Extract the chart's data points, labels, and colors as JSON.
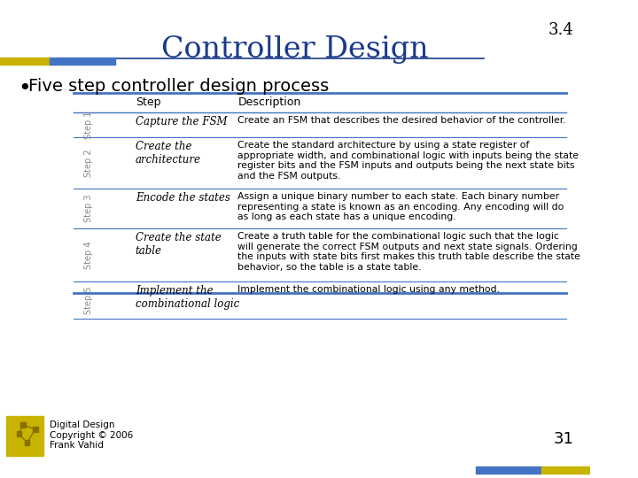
{
  "title": "Controller Design",
  "section_num": "3.4",
  "bullet": "Five step controller design process",
  "page_num": "31",
  "footer_text": "Digital Design\nCopyright © 2006\nFrank Vahid",
  "table_headers": [
    "Step",
    "Description"
  ],
  "steps": [
    {
      "step_label": "Step 1",
      "step_name": "Capture the FSM",
      "description": "Create an FSM that describes the desired behavior of the controller."
    },
    {
      "step_label": "Step 2",
      "step_name": "Create the\narchitecture",
      "description": "Create the standard architecture by using a state register of\nappropriate width, and combinational logic with inputs being the state\nregister bits and the FSM inputs and outputs being the next state bits\nand the FSM outputs."
    },
    {
      "step_label": "Step 3",
      "step_name": "Encode the states",
      "description": "Assign a unique binary number to each state. Each binary number\nrepresenting a state is known as an encoding. Any encoding will do\nas long as each state has a unique encoding."
    },
    {
      "step_label": "Step 4",
      "step_name": "Create the state\ntable",
      "description": "Create a truth table for the combinational logic such that the logic\nwill generate the correct FSM outputs and next state signals. Ordering\nthe inputs with state bits first makes this truth table describe the state\nbehavior, so the table is a state table."
    },
    {
      "step_label": "Step 5",
      "step_name": "Implement the\ncombinational logic",
      "description": "Implement the combinational logic using any method."
    }
  ],
  "bg_color": "#ffffff",
  "title_color": "#1a3a8a",
  "title_underline_color": "#1a3a8a",
  "section_num_color": "#000000",
  "bullet_color": "#000000",
  "table_border_color": "#4472c4",
  "table_header_text_color": "#000000",
  "step_label_color": "#888888",
  "step_name_color": "#000000",
  "description_color": "#000000",
  "page_num_color": "#000000",
  "footer_color": "#000000",
  "header_bar_left_color1": "#c8b400",
  "header_bar_left_color2": "#4472c4",
  "footer_bar_right_color1": "#4472c4",
  "footer_bar_right_color2": "#c8b400",
  "logo_color": "#c8b400"
}
